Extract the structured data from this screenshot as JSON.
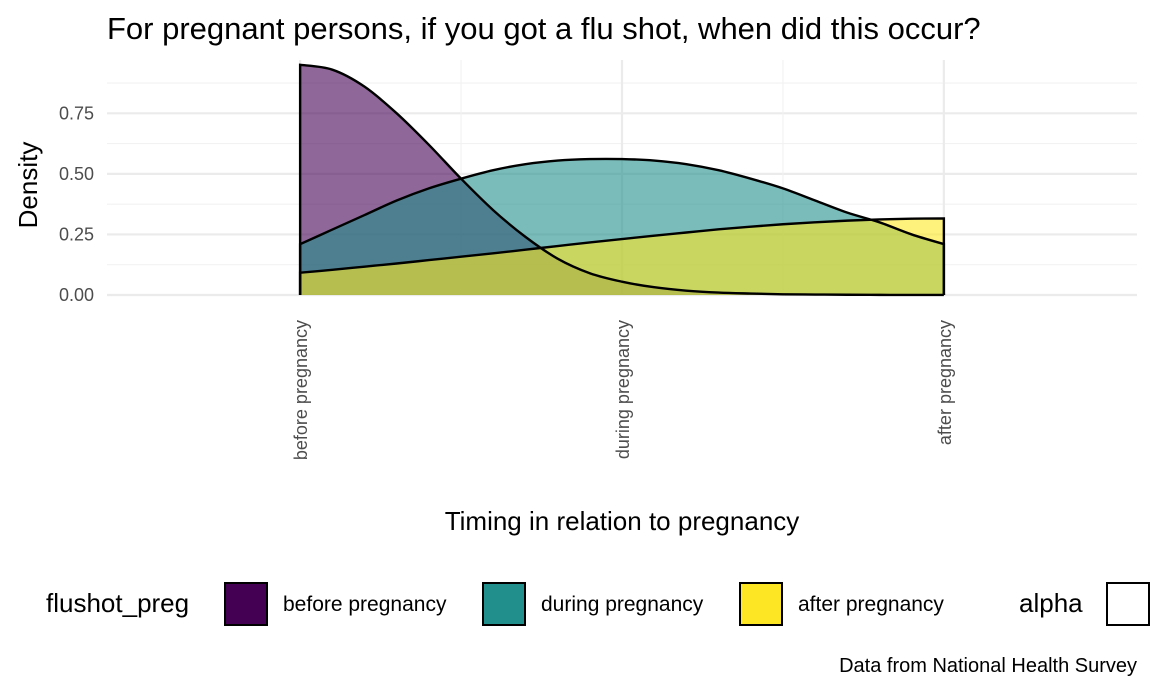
{
  "chart_data": {
    "type": "area",
    "title": "For pregnant persons, if you got a flu shot, when did this occur?",
    "xlabel": "Timing in relation to pregnancy",
    "ylabel": "Density",
    "caption": "Data from National Health Survey",
    "categories": [
      "before pregnancy",
      "during pregnancy",
      "after pregnancy"
    ],
    "x_range": [
      0.4,
      3.6
    ],
    "ylim": [
      0,
      0.97
    ],
    "y_ticks": [
      0.0,
      0.25,
      0.5,
      0.75
    ],
    "y_tick_labels": [
      "0.00",
      "0.25",
      "0.50",
      "0.75"
    ],
    "grid": true,
    "legend": {
      "position": "bottom",
      "title": "flushot_preg",
      "entries": [
        {
          "label": "before pregnancy",
          "color": "#440154"
        },
        {
          "label": "during pregnancy",
          "color": "#21908C"
        },
        {
          "label": "after pregnancy",
          "color": "#FDE725"
        }
      ],
      "alpha_title": "alpha"
    },
    "fill_alpha": 0.6,
    "series": [
      {
        "name": "before pregnancy",
        "color": "#440154",
        "x": [
          1.0,
          1.1,
          1.2,
          1.3,
          1.4,
          1.5,
          1.6,
          1.7,
          1.8,
          1.9,
          2.0,
          2.1,
          2.2,
          2.3,
          2.4,
          2.5,
          2.6,
          2.7,
          2.8,
          2.9,
          3.0
        ],
        "values": [
          0.95,
          0.93,
          0.86,
          0.75,
          0.62,
          0.48,
          0.35,
          0.24,
          0.15,
          0.09,
          0.055,
          0.032,
          0.018,
          0.01,
          0.006,
          0.003,
          0.002,
          0.001,
          0.0005,
          0.0002,
          0.0001
        ]
      },
      {
        "name": "during pregnancy",
        "color": "#21908C",
        "x": [
          1.0,
          1.1,
          1.2,
          1.3,
          1.4,
          1.5,
          1.6,
          1.7,
          1.8,
          1.9,
          2.0,
          2.1,
          2.2,
          2.3,
          2.4,
          2.5,
          2.6,
          2.7,
          2.8,
          2.9,
          3.0
        ],
        "values": [
          0.21,
          0.27,
          0.33,
          0.39,
          0.44,
          0.48,
          0.515,
          0.54,
          0.555,
          0.561,
          0.561,
          0.555,
          0.54,
          0.515,
          0.48,
          0.44,
          0.39,
          0.34,
          0.3,
          0.25,
          0.21
        ]
      },
      {
        "name": "after pregnancy",
        "color": "#FDE725",
        "x": [
          1.0,
          1.1,
          1.2,
          1.3,
          1.4,
          1.5,
          1.6,
          1.7,
          1.8,
          1.9,
          2.0,
          2.1,
          2.2,
          2.3,
          2.4,
          2.5,
          2.6,
          2.7,
          2.8,
          2.9,
          3.0
        ],
        "values": [
          0.092,
          0.104,
          0.117,
          0.13,
          0.144,
          0.158,
          0.172,
          0.187,
          0.202,
          0.217,
          0.231,
          0.245,
          0.258,
          0.271,
          0.282,
          0.292,
          0.3,
          0.307,
          0.312,
          0.315,
          0.316
        ]
      }
    ]
  }
}
